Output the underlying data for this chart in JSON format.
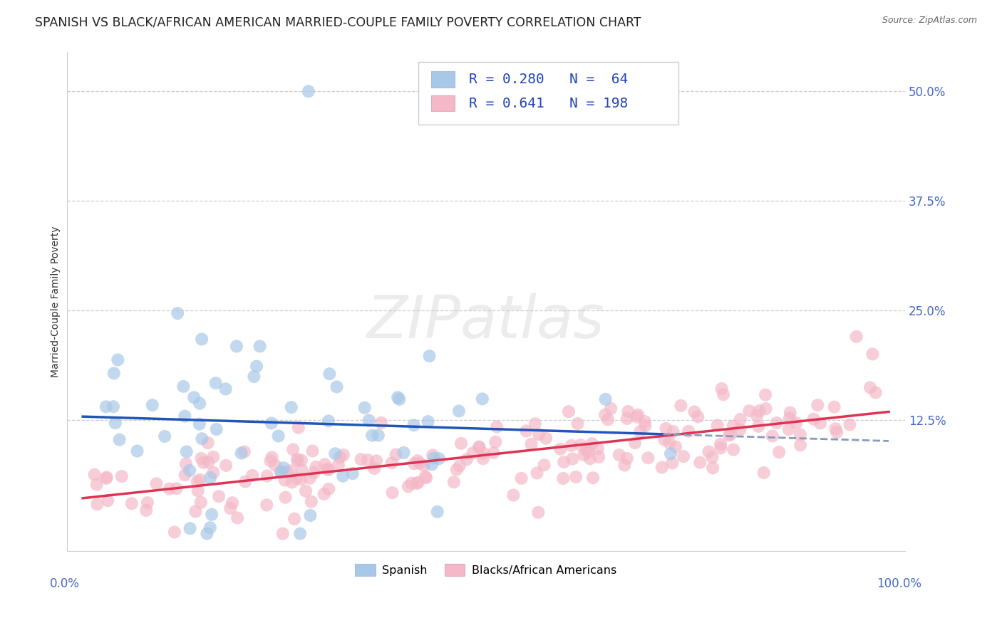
{
  "title": "SPANISH VS BLACK/AFRICAN AMERICAN MARRIED-COUPLE FAMILY POVERTY CORRELATION CHART",
  "source": "Source: ZipAtlas.com",
  "ylabel": "Married-Couple Family Poverty",
  "ytick_labels": [
    "50.0%",
    "37.5%",
    "25.0%",
    "12.5%"
  ],
  "ytick_values": [
    0.5,
    0.375,
    0.25,
    0.125
  ],
  "xlim": [
    -0.02,
    1.02
  ],
  "ylim": [
    -0.025,
    0.545
  ],
  "legend_label_spanish": "Spanish",
  "legend_label_black": "Blacks/African Americans",
  "color_spanish": "#a8c8e8",
  "color_black": "#f4b8c8",
  "color_trendline_spanish": "#2255bb",
  "color_trendline_black": "#dd3355",
  "watermark": "ZIPatlas",
  "title_fontsize": 12.5,
  "axis_label_fontsize": 10,
  "tick_fontsize": 12,
  "legend_fontsize": 14,
  "watermark_fontsize": 60,
  "legend_r_spanish": "R = 0.280",
  "legend_n_spanish": "N =  64",
  "legend_r_black": "R = 0.641",
  "legend_n_black": "N = 198"
}
